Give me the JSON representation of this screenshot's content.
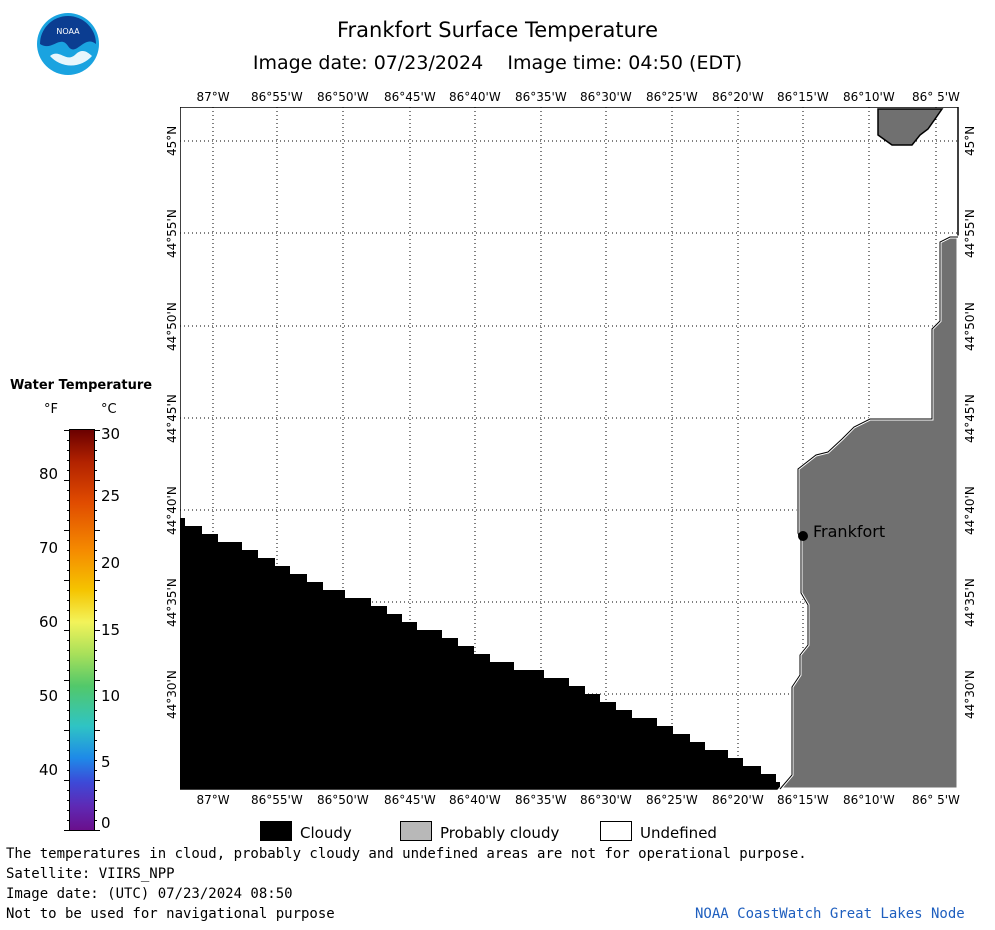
{
  "header": {
    "title": "Frankfort Surface Temperature",
    "subtitle": "Image date: 07/23/2024    Image time: 04:50 (EDT)"
  },
  "logo": {
    "text": "NOAA",
    "icon": "noaa-logo"
  },
  "map": {
    "lon_labels": [
      "87°W",
      "86°55'W",
      "86°50'W",
      "86°45'W",
      "86°40'W",
      "86°35'W",
      "86°30'W",
      "86°25'W",
      "86°20'W",
      "86°15'W",
      "86°10'W",
      "86° 5'W"
    ],
    "lat_labels": [
      "45°N",
      "44°55'N",
      "44°50'N",
      "44°45'N",
      "44°40'N",
      "44°35'N",
      "44°30'N"
    ],
    "city": "Frankfort",
    "colors": {
      "cloudy": "#000000",
      "land": "#707070",
      "water": "#ffffff"
    }
  },
  "legend": {
    "title": "Water Temperature",
    "unit_f": "°F",
    "unit_c": "°C",
    "f_ticks": [
      "80",
      "70",
      "60",
      "50",
      "40"
    ],
    "c_ticks": [
      "30",
      "25",
      "20",
      "15",
      "10",
      "5",
      "0"
    ]
  },
  "key": {
    "cloudy": "Cloudy",
    "probably_cloudy": "Probably cloudy",
    "undefined": "Undefined"
  },
  "footer": {
    "note": "The temperatures in cloud, probably cloudy and undefined areas are not for operational purpose.",
    "satellite": "Satellite: VIIRS_NPP",
    "utc": "Image date: (UTC) 07/23/2024  08:50",
    "nav": "Not to be used for navigational purpose",
    "credit": "NOAA CoastWatch Great Lakes Node"
  }
}
